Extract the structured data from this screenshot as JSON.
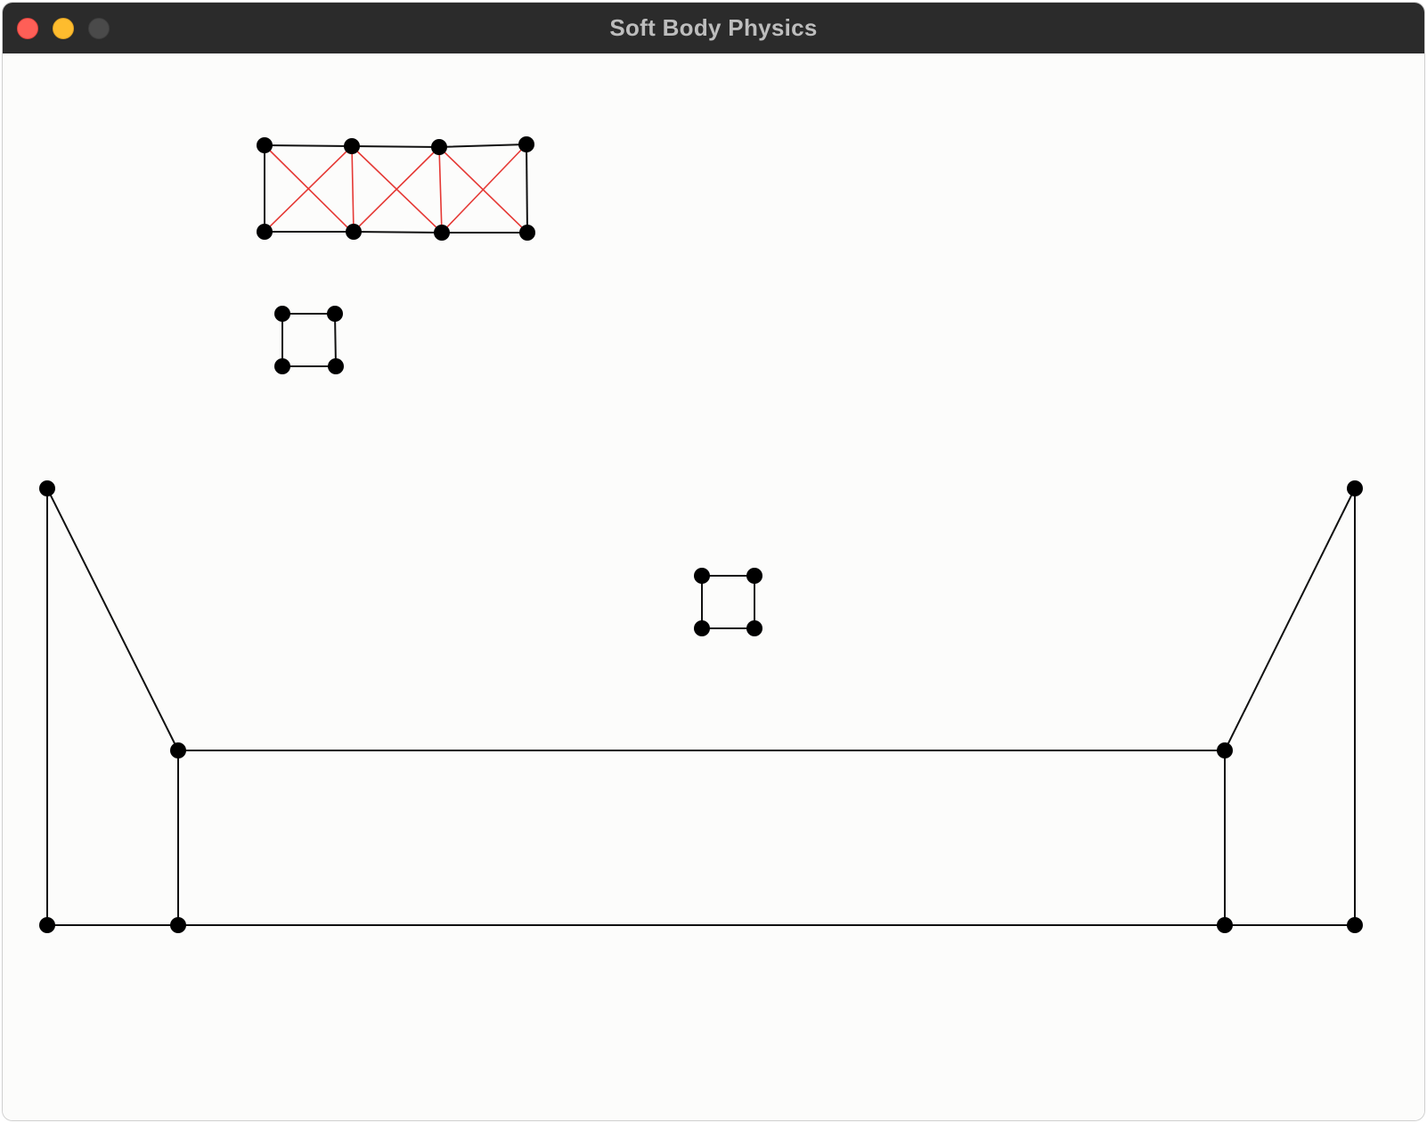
{
  "window": {
    "title": "Soft Body Physics",
    "controls": [
      "close",
      "minimize",
      "zoom"
    ]
  },
  "colors": {
    "background": "#fcfcfb",
    "edge": "#111111",
    "spring": "#e53935",
    "node": "#000000",
    "titlebar": "#2b2b2b",
    "title_text": "#bdbdbd"
  }
}
